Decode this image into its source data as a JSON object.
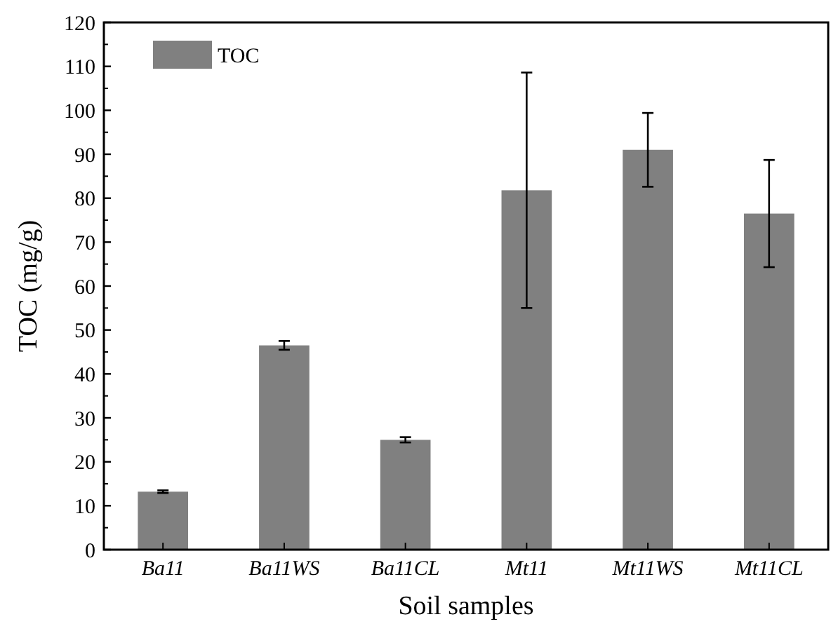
{
  "chart_data": {
    "type": "bar",
    "xlabel": "Soil samples",
    "ylabel": "TOC (mg/g)",
    "categories": [
      "Ba11",
      "Ba11WS",
      "Ba11CL",
      "Mt11",
      "Mt11WS",
      "Mt11CL"
    ],
    "series": [
      {
        "name": "TOC",
        "color": "#808080",
        "values": [
          13.2,
          46.5,
          25,
          81.8,
          91,
          76.5
        ],
        "errors": [
          0.3,
          1,
          0.6,
          26.8,
          8.4,
          12.2
        ]
      }
    ],
    "ylim": [
      0,
      120
    ],
    "yticks": [
      0,
      10,
      20,
      30,
      40,
      50,
      60,
      70,
      80,
      90,
      100,
      110,
      120
    ],
    "legend": "top left",
    "grid": false
  }
}
